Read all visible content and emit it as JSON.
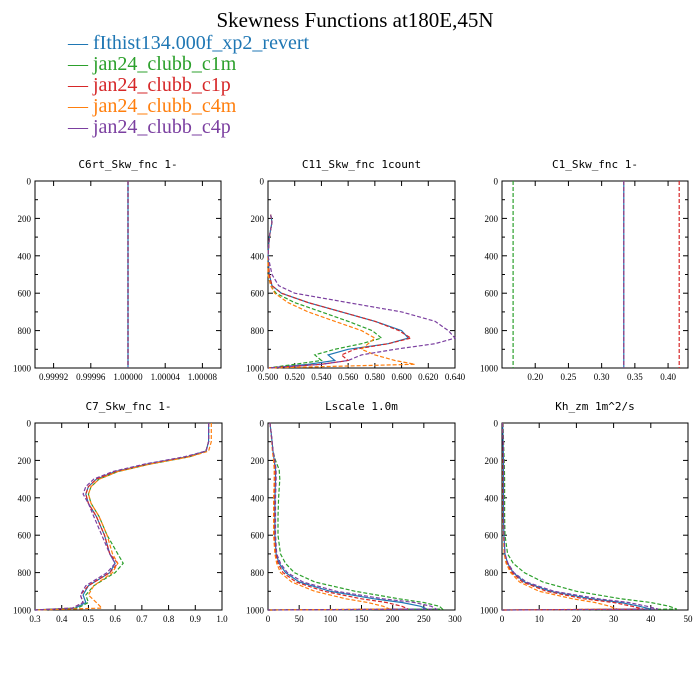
{
  "figure": {
    "title": "Skewness Functions at180E,45N"
  },
  "legend": [
    {
      "label": "fIthist134.000f_xp2_revert",
      "color": "#1f77b4"
    },
    {
      "label": "jan24_clubb_c1m",
      "color": "#2ca02c"
    },
    {
      "label": "jan24_clubb_c1p",
      "color": "#d62728"
    },
    {
      "label": "jan24_clubb_c4m",
      "color": "#ff7f0e"
    },
    {
      "label": "jan24_clubb_c4p",
      "color": "#7b3fa0"
    }
  ],
  "chart_data": [
    {
      "type": "line",
      "title": "C6rt_Skw_fnc   1-",
      "xlim": [
        0.9999,
        1.0001
      ],
      "ylim": [
        1000,
        0
      ],
      "xticks": [
        0.99992,
        0.99996,
        1.0,
        1.00004,
        1.00008
      ],
      "xtick_labels": [
        "0.99992",
        "0.99996",
        "1.00000",
        "1.00004",
        "1.00008"
      ],
      "yticks": [
        0,
        200,
        400,
        600,
        800,
        1000
      ],
      "y": [
        0,
        1000
      ],
      "series": [
        {
          "name": "fIthist134.000f_xp2_revert",
          "x": [
            1.0,
            1.0
          ]
        },
        {
          "name": "jan24_clubb_c1m",
          "x": [
            1.0,
            1.0
          ]
        },
        {
          "name": "jan24_clubb_c1p",
          "x": [
            1.0,
            1.0
          ]
        },
        {
          "name": "jan24_clubb_c4m",
          "x": [
            1.0,
            1.0
          ]
        },
        {
          "name": "jan24_clubb_c4p",
          "x": [
            1.0,
            1.0
          ]
        }
      ]
    },
    {
      "type": "line",
      "title": "C11_Skw_fnc   1count",
      "xlim": [
        0.5,
        0.64
      ],
      "ylim": [
        1000,
        0
      ],
      "xticks": [
        0.5,
        0.52,
        0.54,
        0.56,
        0.58,
        0.6,
        0.62,
        0.64
      ],
      "xtick_labels": [
        "0.500",
        "0.520",
        "0.540",
        "0.560",
        "0.580",
        "0.600",
        "0.620",
        "0.640"
      ],
      "yticks": [
        0,
        200,
        400,
        600,
        800,
        1000
      ],
      "y": [
        180,
        220,
        300,
        400,
        500,
        560,
        600,
        650,
        700,
        750,
        800,
        840,
        870,
        900,
        930,
        960,
        980,
        1000
      ],
      "series": [
        {
          "name": "fIthist134.000f_xp2_revert",
          "x": [
            0.502,
            0.503,
            0.501,
            0.5,
            0.501,
            0.503,
            0.51,
            0.53,
            0.555,
            0.58,
            0.6,
            0.605,
            0.59,
            0.56,
            0.545,
            0.55,
            0.53,
            0.5
          ]
        },
        {
          "name": "jan24_clubb_c1m",
          "x": [
            0.502,
            0.503,
            0.501,
            0.5,
            0.5,
            0.502,
            0.506,
            0.52,
            0.54,
            0.56,
            0.578,
            0.585,
            0.57,
            0.55,
            0.535,
            0.54,
            0.52,
            0.5
          ]
        },
        {
          "name": "jan24_clubb_c1p",
          "x": [
            0.502,
            0.503,
            0.501,
            0.5,
            0.501,
            0.503,
            0.51,
            0.53,
            0.555,
            0.58,
            0.598,
            0.607,
            0.59,
            0.565,
            0.555,
            0.56,
            0.54,
            0.5
          ]
        },
        {
          "name": "jan24_clubb_c4m",
          "x": [
            0.502,
            0.503,
            0.501,
            0.5,
            0.5,
            0.502,
            0.505,
            0.515,
            0.53,
            0.55,
            0.57,
            0.58,
            0.575,
            0.57,
            0.58,
            0.595,
            0.61,
            0.5
          ]
        },
        {
          "name": "jan24_clubb_c4p",
          "x": [
            0.502,
            0.503,
            0.501,
            0.5,
            0.503,
            0.508,
            0.52,
            0.56,
            0.6,
            0.625,
            0.635,
            0.64,
            0.625,
            0.595,
            0.57,
            0.56,
            0.54,
            0.5
          ]
        }
      ]
    },
    {
      "type": "line",
      "title": "C1_Skw_fnc   1-",
      "xlim": [
        0.15,
        0.43
      ],
      "ylim": [
        1000,
        0
      ],
      "xticks": [
        0.2,
        0.25,
        0.3,
        0.35,
        0.4
      ],
      "xtick_labels": [
        "0.20",
        "0.25",
        "0.30",
        "0.35",
        "0.40"
      ],
      "yticks": [
        0,
        200,
        400,
        600,
        800,
        1000
      ],
      "y": [
        0,
        1000
      ],
      "series": [
        {
          "name": "fIthist134.000f_xp2_revert",
          "x": [
            0.3333,
            0.3333
          ]
        },
        {
          "name": "jan24_clubb_c1m",
          "x": [
            0.1667,
            0.1667
          ]
        },
        {
          "name": "jan24_clubb_c1p",
          "x": [
            0.4167,
            0.4167
          ]
        },
        {
          "name": "jan24_clubb_c4m",
          "x": [
            0.3333,
            0.3333
          ]
        },
        {
          "name": "jan24_clubb_c4p",
          "x": [
            0.3333,
            0.3333
          ]
        }
      ]
    },
    {
      "type": "line",
      "title": "C7_Skw_fnc   1-",
      "xlim": [
        0.3,
        1.0
      ],
      "ylim": [
        1000,
        0
      ],
      "xticks": [
        0.3,
        0.4,
        0.5,
        0.6,
        0.7,
        0.8,
        0.9,
        1.0
      ],
      "xtick_labels": [
        "0.3",
        "0.4",
        "0.5",
        "0.6",
        "0.7",
        "0.8",
        "0.9",
        "1.0"
      ],
      "yticks": [
        0,
        200,
        400,
        600,
        800,
        1000
      ],
      "y": [
        0,
        100,
        150,
        180,
        220,
        260,
        300,
        340,
        380,
        430,
        500,
        600,
        700,
        750,
        800,
        870,
        920,
        960,
        990,
        1000
      ],
      "series": [
        {
          "name": "fIthist134.000f_xp2_revert",
          "x": [
            0.95,
            0.95,
            0.94,
            0.87,
            0.72,
            0.6,
            0.53,
            0.5,
            0.49,
            0.5,
            0.53,
            0.56,
            0.58,
            0.6,
            0.58,
            0.5,
            0.48,
            0.49,
            0.45,
            0.3
          ]
        },
        {
          "name": "jan24_clubb_c1m",
          "x": [
            0.95,
            0.95,
            0.94,
            0.88,
            0.73,
            0.61,
            0.54,
            0.51,
            0.5,
            0.51,
            0.54,
            0.57,
            0.61,
            0.63,
            0.6,
            0.52,
            0.49,
            0.5,
            0.46,
            0.3
          ]
        },
        {
          "name": "jan24_clubb_c1p",
          "x": [
            0.95,
            0.95,
            0.94,
            0.87,
            0.72,
            0.6,
            0.53,
            0.5,
            0.49,
            0.5,
            0.53,
            0.56,
            0.58,
            0.61,
            0.58,
            0.5,
            0.47,
            0.48,
            0.44,
            0.3
          ]
        },
        {
          "name": "jan24_clubb_c4m",
          "x": [
            0.96,
            0.96,
            0.95,
            0.88,
            0.73,
            0.61,
            0.54,
            0.51,
            0.5,
            0.51,
            0.54,
            0.57,
            0.59,
            0.61,
            0.59,
            0.52,
            0.5,
            0.53,
            0.55,
            0.3
          ]
        },
        {
          "name": "jan24_clubb_c4p",
          "x": [
            0.95,
            0.95,
            0.94,
            0.86,
            0.71,
            0.59,
            0.52,
            0.49,
            0.48,
            0.5,
            0.52,
            0.55,
            0.58,
            0.6,
            0.57,
            0.49,
            0.47,
            0.48,
            0.44,
            0.3
          ]
        }
      ]
    },
    {
      "type": "line",
      "title": "Lscale   1.0m",
      "xlim": [
        0,
        300
      ],
      "ylim": [
        1000,
        0
      ],
      "xticks": [
        0,
        50,
        100,
        150,
        200,
        250,
        300
      ],
      "xtick_labels": [
        "0",
        "50",
        "100",
        "150",
        "200",
        "250",
        "300"
      ],
      "yticks": [
        0,
        200,
        400,
        600,
        800,
        1000
      ],
      "y": [
        0,
        50,
        150,
        200,
        250,
        300,
        400,
        500,
        600,
        700,
        750,
        800,
        850,
        900,
        940,
        960,
        980,
        995,
        1000
      ],
      "series": [
        {
          "name": "fIthist134.000f_xp2_revert",
          "x": [
            3,
            5,
            8,
            10,
            12,
            12,
            11,
            11,
            11,
            13,
            18,
            28,
            50,
            100,
            170,
            215,
            245,
            255,
            0
          ]
        },
        {
          "name": "jan24_clubb_c1m",
          "x": [
            3,
            5,
            8,
            12,
            18,
            19,
            17,
            16,
            16,
            20,
            28,
            42,
            75,
            140,
            210,
            250,
            275,
            280,
            0
          ]
        },
        {
          "name": "jan24_clubb_c1p",
          "x": [
            3,
            5,
            8,
            10,
            11,
            11,
            10,
            10,
            10,
            12,
            16,
            24,
            45,
            90,
            150,
            190,
            215,
            225,
            0
          ]
        },
        {
          "name": "jan24_clubb_c4m",
          "x": [
            3,
            5,
            7,
            9,
            10,
            10,
            9,
            9,
            9,
            11,
            14,
            20,
            38,
            75,
            125,
            160,
            185,
            195,
            0
          ]
        },
        {
          "name": "jan24_clubb_c4p",
          "x": [
            3,
            5,
            8,
            11,
            13,
            13,
            12,
            12,
            12,
            14,
            20,
            31,
            56,
            110,
            185,
            235,
            262,
            270,
            0
          ]
        }
      ]
    },
    {
      "type": "line",
      "title": "Kh_zm   1m^2/s",
      "xlim": [
        0,
        50
      ],
      "ylim": [
        1000,
        0
      ],
      "xticks": [
        0,
        10,
        20,
        30,
        40,
        50
      ],
      "xtick_labels": [
        "0",
        "10",
        "20",
        "30",
        "40",
        "50"
      ],
      "yticks": [
        0,
        200,
        400,
        600,
        800,
        1000
      ],
      "y": [
        0,
        100,
        200,
        300,
        400,
        500,
        600,
        700,
        750,
        800,
        850,
        900,
        940,
        960,
        980,
        995,
        1000
      ],
      "series": [
        {
          "name": "fIthist134.000f_xp2_revert",
          "x": [
            0.2,
            0.3,
            0.4,
            0.4,
            0.4,
            0.4,
            0.5,
            0.8,
            1.5,
            3,
            6,
            13,
            24,
            32,
            37,
            40,
            0
          ]
        },
        {
          "name": "jan24_clubb_c1m",
          "x": [
            0.3,
            0.4,
            0.6,
            0.7,
            0.7,
            0.7,
            0.8,
            1.5,
            3,
            6,
            11,
            20,
            32,
            40,
            45,
            47,
            0
          ]
        },
        {
          "name": "jan24_clubb_c1p",
          "x": [
            0.2,
            0.3,
            0.4,
            0.4,
            0.4,
            0.4,
            0.5,
            0.7,
            1.3,
            2.7,
            5.5,
            12,
            22,
            30,
            35,
            38,
            0
          ]
        },
        {
          "name": "jan24_clubb_c4m",
          "x": [
            0.2,
            0.3,
            0.3,
            0.3,
            0.3,
            0.3,
            0.4,
            0.6,
            1.1,
            2.3,
            4.7,
            10,
            19,
            25,
            29,
            31,
            0
          ]
        },
        {
          "name": "jan24_clubb_c4p",
          "x": [
            0.2,
            0.3,
            0.4,
            0.4,
            0.4,
            0.4,
            0.5,
            0.8,
            1.6,
            3.2,
            6.5,
            14,
            26,
            34,
            39,
            42,
            0
          ]
        }
      ]
    }
  ]
}
